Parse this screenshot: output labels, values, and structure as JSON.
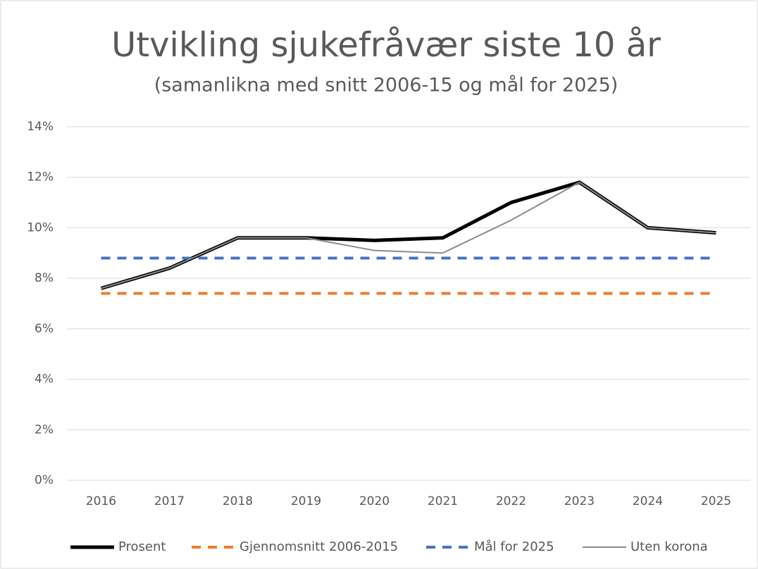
{
  "chart_data": {
    "type": "line",
    "title": "Utvikling sjukefråvær siste 10 år",
    "subtitle": "(samanlikna med snitt 2006-15 og mål for 2025)",
    "categories": [
      "2016",
      "2017",
      "2018",
      "2019",
      "2020",
      "2021",
      "2022",
      "2023",
      "2024",
      "2025"
    ],
    "series": [
      {
        "name": "Prosent",
        "color": "#000000",
        "style": "solid",
        "width": 5,
        "values": [
          7.6,
          8.4,
          9.6,
          9.6,
          9.5,
          9.6,
          11.0,
          11.8,
          10.0,
          9.8
        ]
      },
      {
        "name": "Gjennomsnitt 2006-2015",
        "color": "#ed7d31",
        "style": "dashed",
        "width": 4,
        "values": [
          7.4,
          7.4,
          7.4,
          7.4,
          7.4,
          7.4,
          7.4,
          7.4,
          7.4,
          7.4
        ]
      },
      {
        "name": "Mål for 2025",
        "color": "#4472c4",
        "style": "dashed",
        "width": 4,
        "values": [
          8.8,
          8.8,
          8.8,
          8.8,
          8.8,
          8.8,
          8.8,
          8.8,
          8.8,
          8.8
        ]
      },
      {
        "name": "Uten korona",
        "color": "#8c8c8c",
        "style": "solid",
        "width": 2,
        "values": [
          7.6,
          8.4,
          9.6,
          9.6,
          9.1,
          9.0,
          10.3,
          11.8,
          10.0,
          9.8
        ]
      }
    ],
    "ylim": [
      0,
      14
    ],
    "yticks": [
      {
        "value": 0,
        "label": "0%"
      },
      {
        "value": 2,
        "label": "2%"
      },
      {
        "value": 4,
        "label": "4%"
      },
      {
        "value": 6,
        "label": "6%"
      },
      {
        "value": 8,
        "label": "8%"
      },
      {
        "value": 10,
        "label": "10%"
      },
      {
        "value": 12,
        "label": "12%"
      },
      {
        "value": 14,
        "label": "14%"
      }
    ],
    "grid": true,
    "legend": "bottom"
  }
}
